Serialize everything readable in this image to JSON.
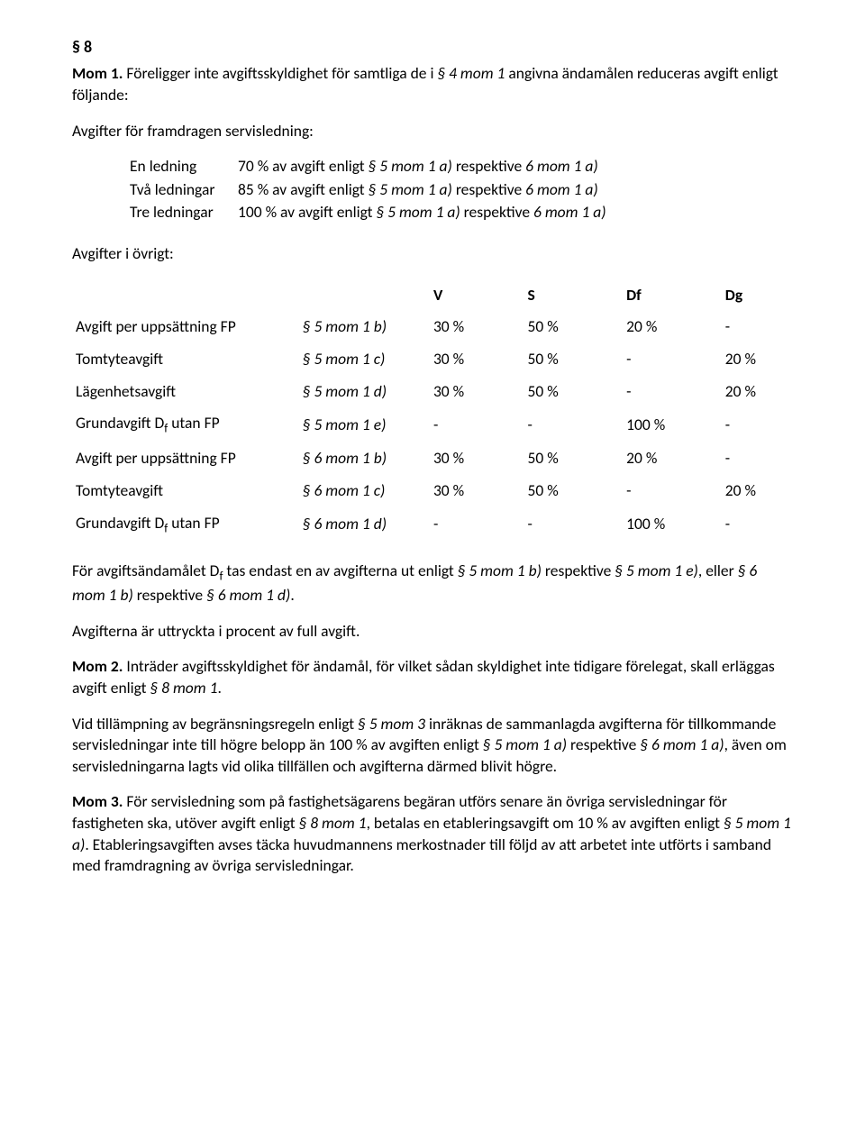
{
  "section_number": "§ 8",
  "mom1_label": "Mom 1.",
  "mom1_text_a": "Föreligger inte avgiftsskyldighet för samtliga de i ",
  "mom1_ref": "§ 4 mom 1",
  "mom1_text_b": " angivna ändamålen reduceras avgift enligt följande:",
  "subhead_framdragen": "Avgifter för framdragen servisledning:",
  "ledningar": [
    {
      "label": "En ledning",
      "pct": "70 % av avgift enligt ",
      "ref": "§ 5 mom 1 a)",
      "resp": " respektive ",
      "ref2": "6 mom 1 a)"
    },
    {
      "label": "Två ledningar",
      "pct": "85 % av avgift enligt ",
      "ref": "§ 5 mom 1 a)",
      "resp": " respektive ",
      "ref2": "6 mom 1 a)"
    },
    {
      "label": "Tre ledningar",
      "pct": "100 % av avgift enligt ",
      "ref": "§ 5 mom 1 a)",
      "resp": " respektive ",
      "ref2": "6 mom 1 a)"
    }
  ],
  "subhead_ovrigt": "Avgifter i övrigt:",
  "table": {
    "headers": {
      "v": "V",
      "s": "S",
      "df": "Df",
      "dg": "Dg"
    },
    "rows": [
      {
        "name": "Avgift per uppsättning FP",
        "ref": "§ 5 mom 1 b)",
        "v": "30 %",
        "s": "50 %",
        "df": "20 %",
        "dg": "-"
      },
      {
        "name": "Tomtyteavgift",
        "ref": "§ 5 mom 1 c)",
        "v": "30 %",
        "s": "50 %",
        "df": "-",
        "dg": "20 %"
      },
      {
        "name": "Lägenhetsavgift",
        "ref": "§ 5 mom 1 d)",
        "v": "30 %",
        "s": "50 %",
        "df": "-",
        "dg": "20 %"
      },
      {
        "name_html": "Grundavgift D<sub>f</sub> utan FP",
        "ref": "§ 5 mom 1 e)",
        "v": "-",
        "s": "-",
        "df": "100 %",
        "dg": "-"
      },
      {
        "name": "Avgift per uppsättning FP",
        "ref": "§ 6 mom 1 b)",
        "v": "30 %",
        "s": "50 %",
        "df": "20 %",
        "dg": "-"
      },
      {
        "name": "Tomtyteavgift",
        "ref": "§ 6 mom 1 c)",
        "v": "30 %",
        "s": "50 %",
        "df": "-",
        "dg": "20 %"
      },
      {
        "name_html": "Grundavgift D<sub>f</sub> utan FP",
        "ref": "§ 6 mom 1 d)",
        "v": "-",
        "s": "-",
        "df": "100 %",
        "dg": "-"
      }
    ]
  },
  "para_df": {
    "a": "För avgiftsändamålet D",
    "b": " tas endast en av avgifterna ut enligt ",
    "ref1": "§ 5 mom 1 b)",
    "c": " respektive ",
    "ref2": "§ 5 mom 1 e)",
    "d": ", eller ",
    "ref3": "§ 6 mom 1 b)",
    "e": " respektive ",
    "ref4": "§ 6 mom 1 d)",
    "f": "."
  },
  "para_percent": "Avgifterna är uttryckta i procent av full avgift.",
  "mom2_label": "Mom 2.",
  "mom2_a": "Inträder avgiftsskyldighet för ändamål, för vilket sådan skyldighet inte tidigare förelegat, skall erläggas avgift enligt ",
  "mom2_ref": "§ 8 mom 1",
  "mom2_b": ".",
  "mom2_para2_a": "Vid tillämpning av begränsningsregeln enligt ",
  "mom2_para2_ref1": "§ 5 mom 3",
  "mom2_para2_b": " inräknas de sammanlagda avgifterna för tillkommande servisledningar inte till högre belopp än 100 % av avgiften enligt ",
  "mom2_para2_ref2": "§ 5 mom 1 a)",
  "mom2_para2_c": " respektive ",
  "mom2_para2_ref3": "§ 6 mom 1 a)",
  "mom2_para2_d": ", även om servisledningarna lagts vid olika tillfällen och avgifterna därmed blivit högre.",
  "mom3_label": "Mom 3.",
  "mom3_a": "För servisledning som på fastighetsägarens begäran utförs senare än övriga servisledningar för fastigheten ska, utöver avgift enligt ",
  "mom3_ref1": "§ 8 mom 1",
  "mom3_b": ", betalas en etableringsavgift om 10 % av avgiften enligt ",
  "mom3_ref2": "§ 5 mom 1 a)",
  "mom3_c": ". Etableringsavgiften avses täcka huvudmannens merkostnader till följd av att arbetet inte utförts i samband med framdragning av övriga servisledningar."
}
